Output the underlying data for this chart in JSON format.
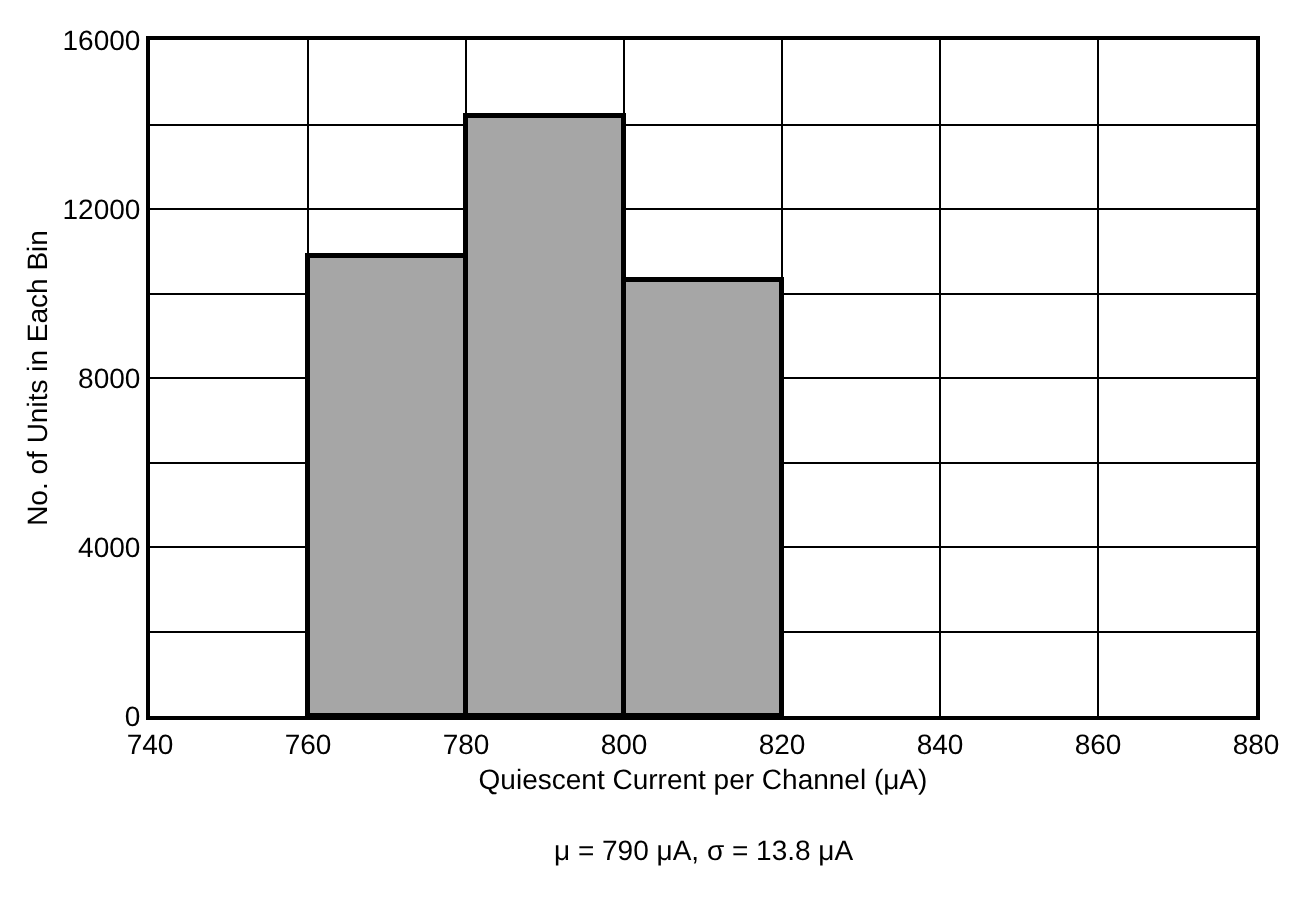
{
  "chart_data": {
    "type": "histogram",
    "xlabel": "Quiescent Current per Channel (μA)",
    "ylabel": "No. of Units in Each Bin",
    "bins": [
      760,
      780,
      800,
      820
    ],
    "values": [
      10900,
      14200,
      10300
    ],
    "color": "#a6a6a6",
    "xlim": [
      740,
      880
    ],
    "xticks": [
      740,
      760,
      780,
      800,
      820,
      840,
      860,
      880
    ],
    "ylim": [
      0,
      16000
    ],
    "yticks": [
      0,
      {
        "value": 2000,
        "label": null
      },
      4000,
      {
        "value": 6000,
        "label": null
      },
      8000,
      {
        "value": 10000,
        "label": null
      },
      12000,
      {
        "value": 14000,
        "label": null
      },
      16000
    ],
    "grid": true,
    "annotations": [
      "μ = 790 μA, σ = 13.8 μA"
    ]
  }
}
